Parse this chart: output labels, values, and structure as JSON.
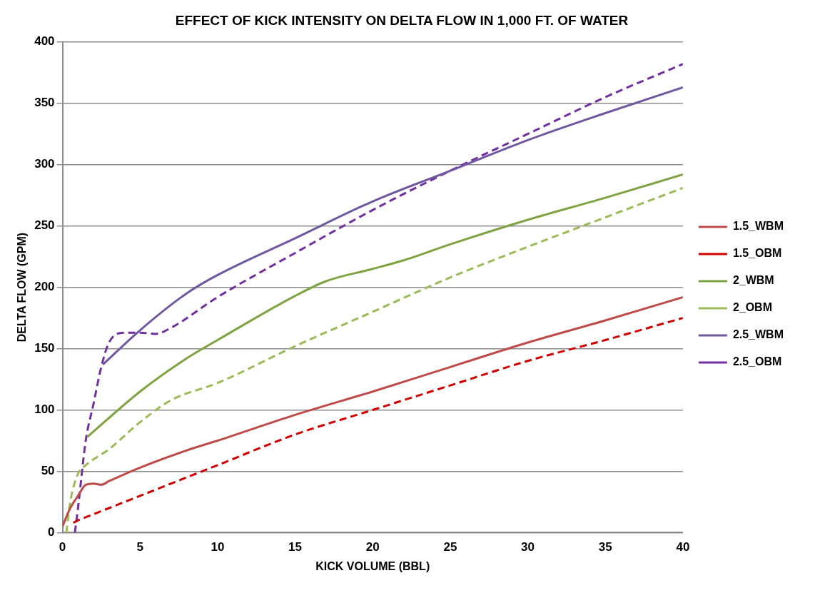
{
  "chart_data": {
    "type": "line",
    "title": "EFFECT OF KICK INTENSITY ON DELTA FLOW IN 1,000 FT. OF WATER",
    "xlabel": "KICK VOLUME (BBL)",
    "ylabel": "DELTA FLOW (GPM)",
    "xlim": [
      0,
      40
    ],
    "xticks": [
      0,
      5,
      10,
      15,
      20,
      25,
      30,
      35,
      40
    ],
    "ylim": [
      0,
      400
    ],
    "yticks": [
      0,
      50,
      100,
      150,
      200,
      250,
      300,
      350,
      400
    ],
    "grid": "y",
    "legend": "right",
    "marker": "none",
    "series": [
      {
        "name": "1.5_WBM",
        "color": "#be4b48",
        "line_style": "solid",
        "x": [
          0,
          0.5,
          1,
          1.5,
          2,
          2.5,
          3,
          5,
          8,
          10,
          15,
          20,
          25,
          30,
          35,
          40
        ],
        "values": [
          5,
          20,
          30,
          39,
          40,
          39,
          42,
          53,
          67,
          75,
          96,
          115,
          135,
          155,
          173,
          192
        ]
      },
      {
        "name": "1.5_OBM",
        "color": "#d00000",
        "line_style": "dashed",
        "x": [
          0.7,
          1,
          2,
          5,
          10,
          15,
          20,
          25,
          30,
          35,
          40
        ],
        "values": [
          8,
          10,
          15,
          30,
          55,
          80,
          100,
          120,
          140,
          157,
          175
        ]
      },
      {
        "name": "2_WBM",
        "color": "#7fa342",
        "line_style": "solid",
        "x": [
          1.6,
          5,
          8,
          10,
          15,
          17,
          20,
          22,
          25,
          30,
          35,
          40
        ],
        "values": [
          78,
          115,
          142,
          157,
          193,
          205,
          215,
          222,
          235,
          255,
          273,
          292
        ]
      },
      {
        "name": "2_OBM",
        "color": "#9bbb59",
        "line_style": "dashed",
        "x": [
          0.25,
          0.5,
          1,
          1.5,
          3,
          5,
          7,
          10,
          15,
          20,
          25,
          30,
          35,
          40
        ],
        "values": [
          0,
          25,
          48,
          55,
          68,
          90,
          108,
          122,
          152,
          180,
          208,
          233,
          257,
          281
        ]
      },
      {
        "name": "2.5_WBM",
        "color": "#7057a0",
        "line_style": "solid",
        "x": [
          2.6,
          5,
          8,
          10,
          15,
          20,
          25,
          30,
          35,
          40
        ],
        "values": [
          137,
          165,
          195,
          210,
          240,
          270,
          295,
          320,
          342,
          363
        ]
      },
      {
        "name": "2.5_OBM",
        "color": "#7030a0",
        "line_style": "dashed",
        "x": [
          0.8,
          1,
          1.5,
          2,
          2.5,
          3,
          4,
          5,
          6,
          7,
          10,
          15,
          20,
          25,
          30,
          35,
          40
        ],
        "values": [
          0,
          20,
          75,
          105,
          135,
          155,
          163,
          163,
          162,
          167,
          192,
          228,
          263,
          295,
          325,
          355,
          382
        ]
      }
    ]
  }
}
